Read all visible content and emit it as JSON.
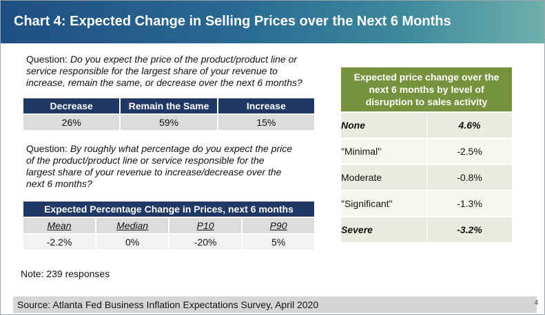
{
  "title": "Chart 4: Expected Change in Selling Prices over the Next 6 Months",
  "question1": {
    "prefix": "Question: ",
    "lines": [
      "Do you expect the price of the product/product line or",
      "service responsible for the largest share of your revenue to",
      "increase, remain the same, or decrease over the next 6 months?"
    ]
  },
  "table1": {
    "headers": [
      "Decrease",
      "Remain the Same",
      "Increase"
    ],
    "values": [
      "26%",
      "59%",
      "15%"
    ]
  },
  "question2": {
    "prefix": "Question: ",
    "lines": [
      "By roughly what percentage do you expect the price",
      "of the product/product line or service responsible for the",
      "largest share of your revenue to increase/decrease over the",
      "next 6 months?"
    ]
  },
  "table2": {
    "title": "Expected Percentage Change in Prices, next 6 months",
    "headers": [
      "Mean",
      "Median",
      "P10",
      "P90"
    ],
    "values": [
      "-2.2%",
      "0%",
      "-20%",
      "5%"
    ]
  },
  "right_table": {
    "header_lines": [
      "Expected price change over the",
      "next 6 months by level of",
      "disruption to sales activity"
    ],
    "rows": [
      {
        "label": "None",
        "value": "4.6%"
      },
      {
        "label": "\"Minimal\"",
        "value": "-2.5%"
      },
      {
        "label": "Moderate",
        "value": "-0.8%"
      },
      {
        "label": "\"Significant\"",
        "value": "-1.3%"
      },
      {
        "label": "Severe",
        "value": "-3.2%"
      }
    ]
  },
  "note": "Note: 239 responses",
  "source": "Source: Atlanta Fed Business Inflation Expectations Survey, April 2020",
  "page_number": "4"
}
